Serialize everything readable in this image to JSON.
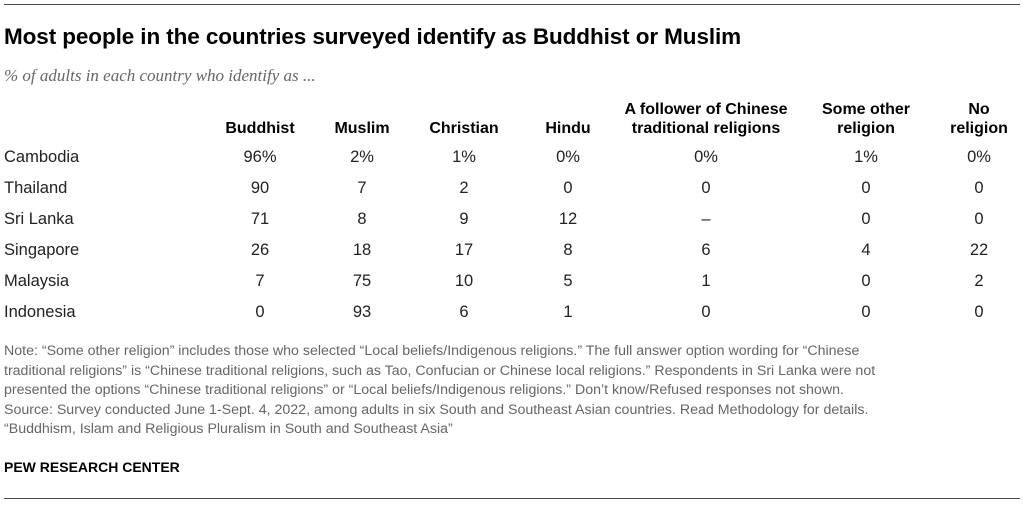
{
  "title": "Most people in the countries surveyed identify as Buddhist or Muslim",
  "subtitle": "% of adults in each country who identify as ...",
  "notes": [
    "Note: “Some other religion” includes those who selected “Local beliefs/Indigenous religions.” The full answer option wording for “Chinese",
    "traditional religions” is “Chinese traditional religions, such as Tao, Confucian or Chinese local religions.” Respondents in Sri Lanka were not",
    "presented the options “Chinese traditional religions” or “Local beliefs/Indigenous religions.” Don’t know/Refused responses not shown.",
    "Source: Survey conducted June 1-Sept. 4, 2022, among adults in six South and Southeast Asian countries. Read Methodology for details.",
    "“Buddhism, Islam and Religious Pluralism in South and Southeast Asia”"
  ],
  "brand": "PEW RESEARCH CENTER",
  "chart_data": {
    "type": "table",
    "columns": [
      {
        "lines": [
          "Buddhist"
        ]
      },
      {
        "lines": [
          "Muslim"
        ]
      },
      {
        "lines": [
          "Christian"
        ]
      },
      {
        "lines": [
          "Hindu"
        ]
      },
      {
        "lines": [
          "A follower of Chinese",
          "traditional religions"
        ]
      },
      {
        "lines": [
          "Some other",
          "religion"
        ]
      },
      {
        "lines": [
          "No",
          "religion"
        ]
      }
    ],
    "rows": [
      {
        "label": "Cambodia",
        "values": [
          "96%",
          "2%",
          "1%",
          "0%",
          "0%",
          "1%",
          "0%"
        ]
      },
      {
        "label": "Thailand",
        "values": [
          "90",
          "7",
          "2",
          "0",
          "0",
          "0",
          "0"
        ]
      },
      {
        "label": "Sri Lanka",
        "values": [
          "71",
          "8",
          "9",
          "12",
          "–",
          "0",
          "0"
        ]
      },
      {
        "label": "Singapore",
        "values": [
          "26",
          "18",
          "17",
          "8",
          "6",
          "4",
          "22"
        ]
      },
      {
        "label": "Malaysia",
        "values": [
          "7",
          "75",
          "10",
          "5",
          "1",
          "0",
          "2"
        ]
      },
      {
        "label": "Indonesia",
        "values": [
          "0",
          "93",
          "6",
          "1",
          "0",
          "0",
          "0"
        ]
      }
    ]
  }
}
